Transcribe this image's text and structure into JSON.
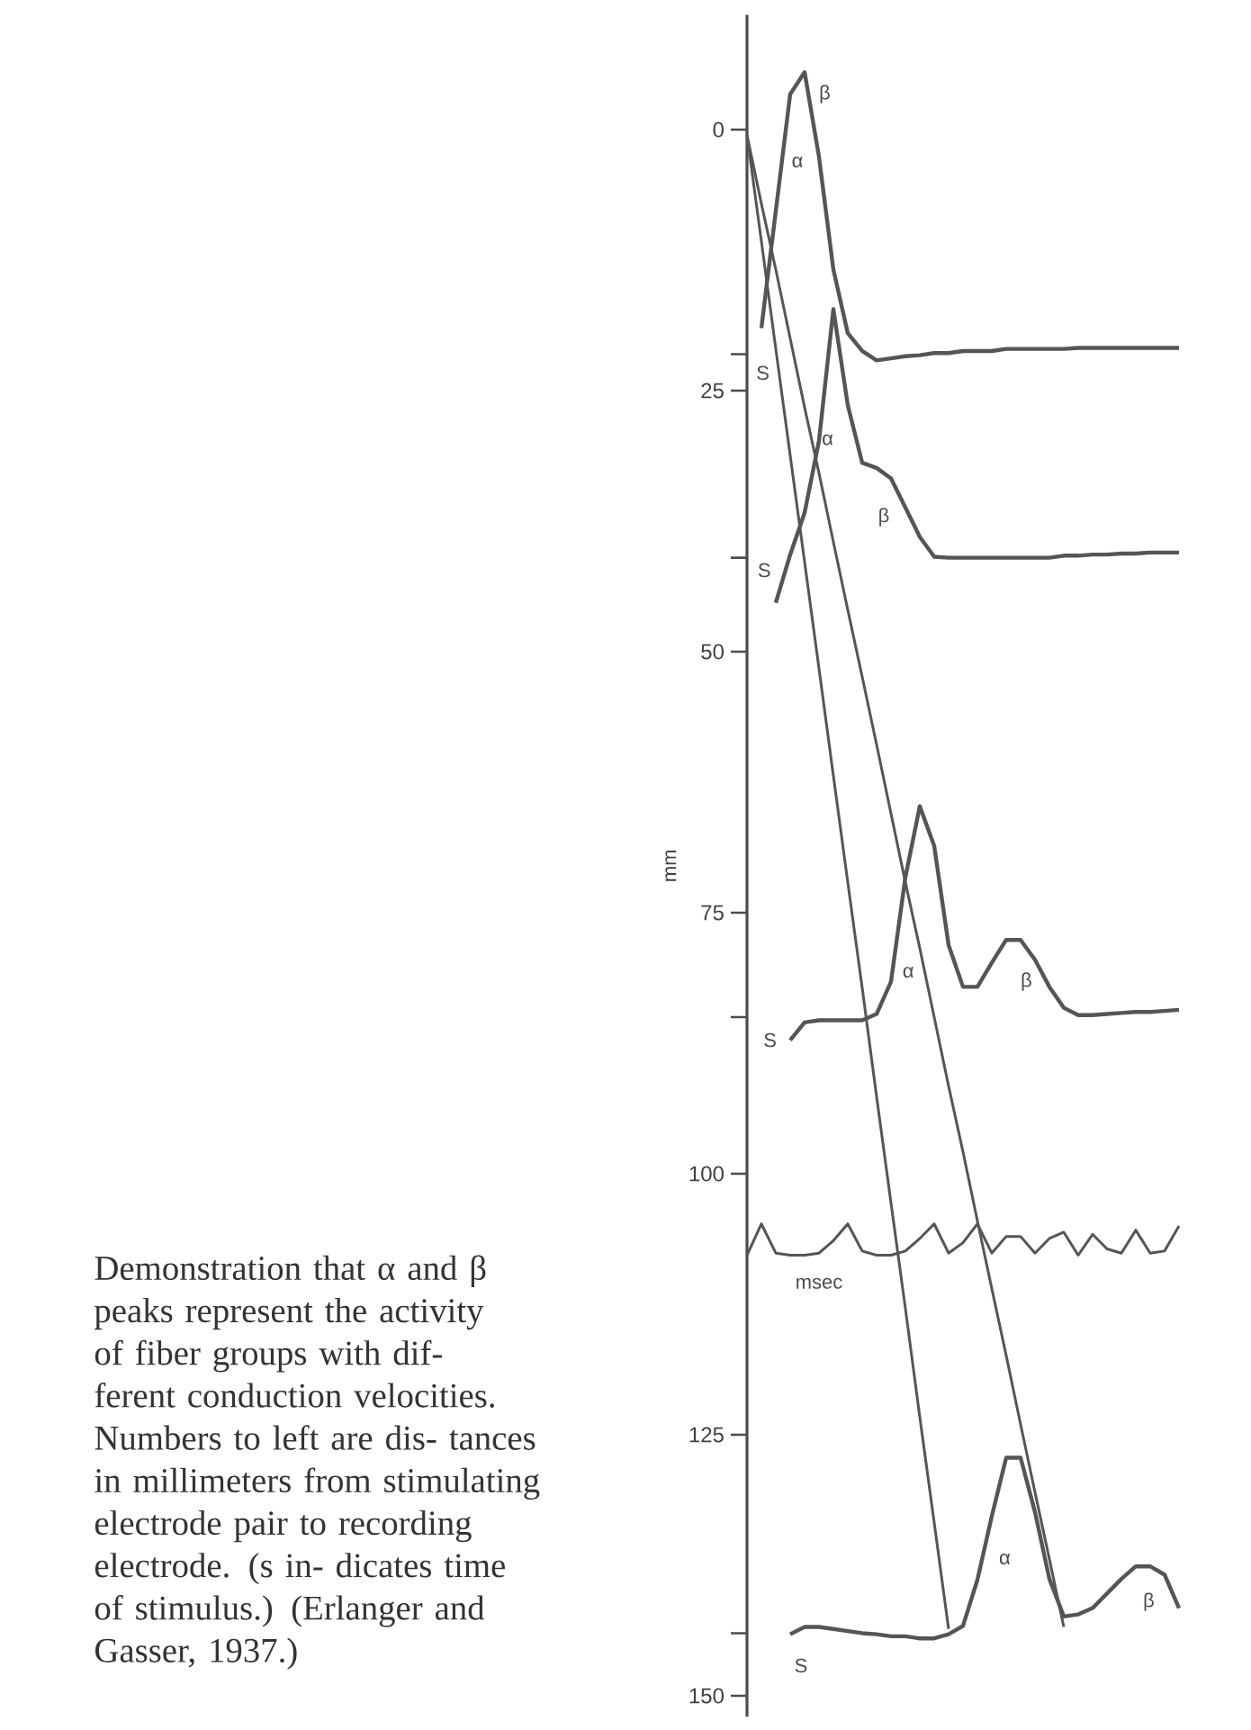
{
  "chart_data": {
    "type": "line",
    "ylabel": "mm",
    "categories": [
      null,
      null,
      null,
      null,
      null,
      null,
      null,
      null,
      null,
      null,
      null,
      null,
      null,
      null,
      null,
      null,
      null,
      null,
      null,
      null,
      null,
      null,
      null,
      null,
      null,
      null,
      null,
      null,
      null,
      null,
      null
    ],
    "ylim": [
      152,
      -11
    ],
    "yticks": [
      0,
      25,
      50,
      75,
      100,
      125,
      150,
      {
        "value": 21.5,
        "label": null
      },
      {
        "value": 41,
        "label": null
      },
      {
        "value": 85,
        "label": null
      },
      {
        "value": 144,
        "label": null
      }
    ],
    "tick_labels": "y",
    "marker": "none",
    "line_style": "solid",
    "grid": false,
    "series": [
      {
        "color": "#555555",
        "values": [
          null,
          19.0,
          7.8,
          -3.4,
          -5.5,
          2.6,
          13.4,
          19.5,
          21.2,
          22.1,
          21.9,
          21.7,
          21.6,
          21.4,
          21.4,
          21.2,
          21.2,
          21.2,
          21.0,
          21.0,
          21.0,
          21.0,
          21.0,
          20.9,
          20.9,
          20.9,
          20.9,
          20.9,
          20.9,
          20.9,
          20.9
        ]
      },
      {
        "color": "#555555",
        "values": [
          null,
          null,
          45.3,
          40.7,
          36.7,
          29.8,
          17.2,
          26.4,
          31.9,
          32.4,
          33.4,
          36.2,
          39.0,
          40.9,
          41.0,
          41.0,
          41.0,
          41.0,
          41.0,
          41.0,
          41.0,
          41.0,
          40.8,
          40.8,
          40.7,
          40.7,
          40.6,
          40.6,
          40.5,
          40.5,
          40.5
        ]
      },
      {
        "color": "#555555",
        "values": [
          null,
          null,
          null,
          87.2,
          85.5,
          85.3,
          85.3,
          85.3,
          85.3,
          84.7,
          81.6,
          71.6,
          64.8,
          68.6,
          78.1,
          82.1,
          82.1,
          79.8,
          77.6,
          77.6,
          79.5,
          82.1,
          84.1,
          84.8,
          84.8,
          84.7,
          84.6,
          84.5,
          84.5,
          84.4,
          84.3
        ]
      },
      {
        "color": "#555555",
        "values": [
          null,
          null,
          null,
          144.1,
          143.4,
          143.4,
          143.6,
          143.8,
          144.0,
          144.1,
          144.3,
          144.3,
          144.5,
          144.5,
          144.1,
          143.3,
          138.9,
          132.8,
          127.2,
          127.2,
          132.4,
          138.8,
          142.4,
          142.2,
          141.6,
          140.2,
          138.8,
          137.6,
          137.6,
          138.4,
          141.6
        ]
      },
      {
        "color": "#555555",
        "values": [
          0.5,
          10.7,
          21.0,
          31.2,
          41.4,
          51.6,
          61.9,
          72.1,
          82.2,
          92.6,
          102.8,
          112.9,
          123.3,
          133.4,
          143.6,
          null,
          null,
          null,
          null,
          null,
          null,
          null,
          null,
          null,
          null,
          null,
          null,
          null,
          null,
          null,
          null
        ]
      },
      {
        "color": "#555555",
        "values": [
          0.5,
          7.1,
          13.4,
          20.0,
          26.6,
          32.9,
          39.5,
          46.0,
          52.4,
          58.9,
          65.5,
          72.1,
          78.4,
          85.0,
          91.6,
          97.9,
          104.5,
          111.0,
          117.4,
          124.0,
          130.5,
          136.9,
          143.4,
          null,
          null,
          null,
          null,
          null,
          null,
          null,
          null
        ]
      },
      {
        "color": "#555555",
        "values": [
          107.8,
          104.8,
          107.6,
          107.8,
          107.8,
          107.6,
          106.4,
          104.8,
          107.4,
          107.8,
          107.8,
          107.4,
          106.2,
          104.8,
          107.6,
          106.6,
          104.8,
          107.6,
          106.0,
          106.0,
          107.6,
          106.2,
          105.6,
          107.8,
          105.8,
          107.2,
          107.6,
          105.4,
          107.6,
          107.4,
          105.0
        ]
      }
    ],
    "annotations": [
      "β",
      "α",
      "S",
      "α",
      "β",
      "S",
      "α",
      "β",
      "S",
      "msec",
      "α",
      "β",
      "S",
      "Demonstration that α and β peaks represent the activity of fiber groups with dif- ferent conduction velocities. Numbers to left are dis- tances in millimeters from stimulating electrode pair to recording electrode. (s in- dicates time of stimulus.) (Erlanger and Gasser, 1937.)"
    ]
  }
}
